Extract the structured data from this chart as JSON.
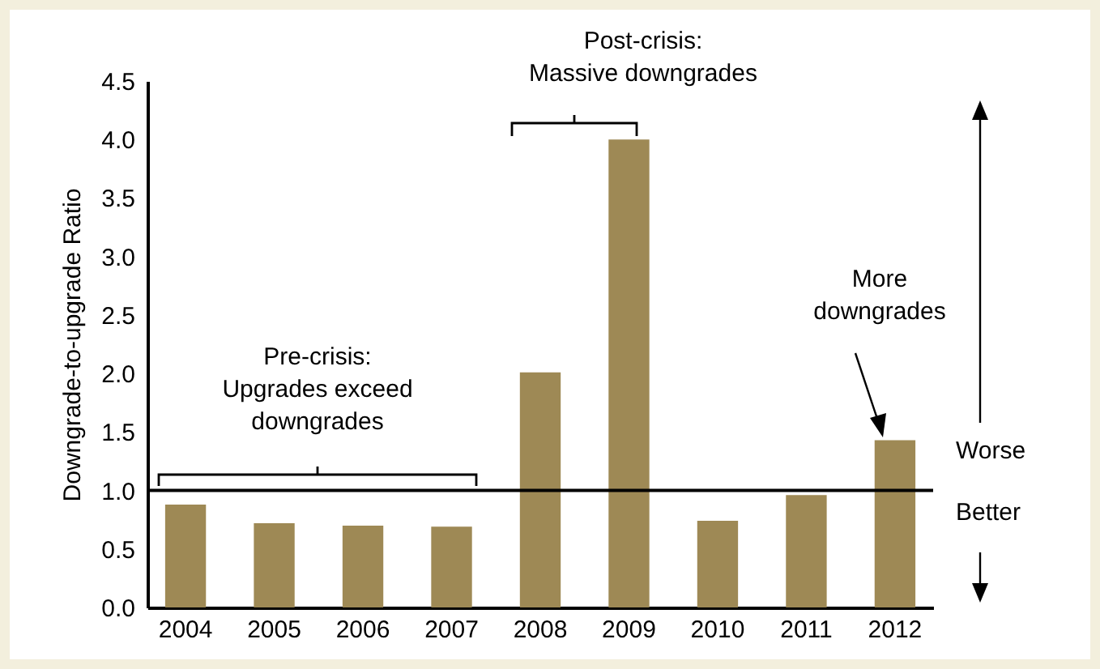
{
  "chart_data": {
    "type": "bar",
    "ylabel": "Downgrade-to-upgrade Ratio",
    "categories": [
      "2004",
      "2005",
      "2006",
      "2007",
      "2008",
      "2009",
      "2010",
      "2011",
      "2012"
    ],
    "values": [
      0.88,
      0.72,
      0.7,
      0.69,
      2.01,
      4.0,
      0.74,
      0.96,
      1.43
    ],
    "color": "#9e8955",
    "ylim": [
      0,
      4.5
    ],
    "yticks": [
      {
        "value": 0,
        "label": "0.0"
      },
      {
        "value": 0.5,
        "label": "0.5"
      },
      {
        "value": 1,
        "label": "1.0"
      },
      {
        "value": 1.5,
        "label": "1.5"
      },
      {
        "value": 2,
        "label": "2.0"
      },
      {
        "value": 2.5,
        "label": "2.5"
      },
      {
        "value": 3,
        "label": "3.0"
      },
      {
        "value": 3.5,
        "label": "3.5"
      },
      {
        "value": 4,
        "label": "4.0"
      },
      {
        "value": 4.5,
        "label": "4.5"
      }
    ],
    "ref_lines": [
      {
        "axis": "y",
        "value": 1,
        "color": "#000000"
      }
    ],
    "annotations": [
      "Pre-crisis:\nUpgrades exceed\ndowngrades",
      "Post-crisis:\nMassive downgrades",
      "More\ndowngrades",
      "Worse",
      "Better"
    ]
  }
}
